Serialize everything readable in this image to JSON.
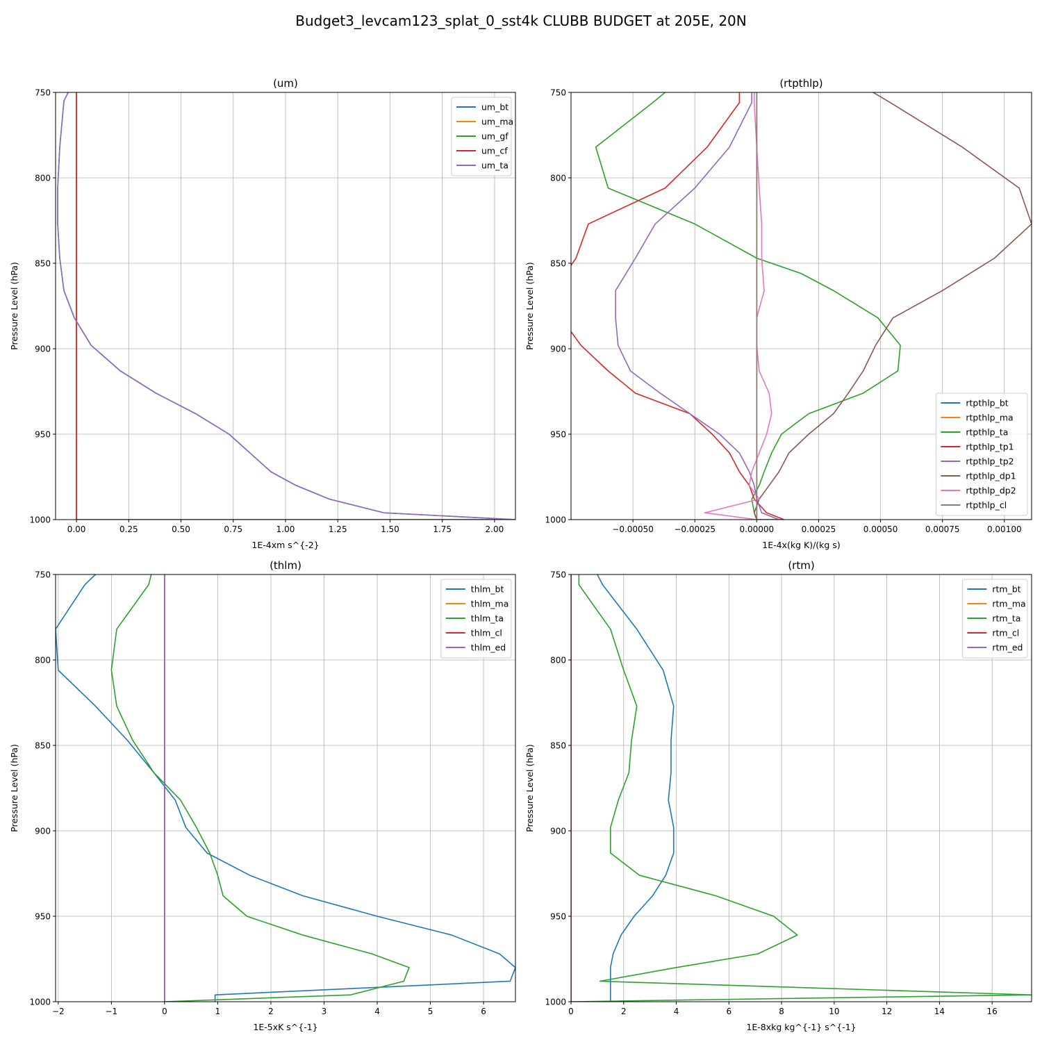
{
  "figure": {
    "title": "Budget3_levcam123_splat_0_sst4k CLUBB BUDGET at 205E, 20N"
  },
  "colors": {
    "c0": "#1f77b4",
    "c1": "#ff7f0e",
    "c2": "#2ca02c",
    "c3": "#d62728",
    "c4": "#9467bd",
    "c5": "#8c564b",
    "c6": "#e377c2",
    "c7": "#7f7f7f",
    "grid": "#b0b0b0"
  },
  "chart_data": [
    {
      "type": "line",
      "title": "(um)",
      "xlabel": "1E-4xm s^{-2}",
      "ylabel": "Pressure Level (hPa)",
      "xlim": [
        -0.1,
        2.1
      ],
      "ylim": [
        1000,
        750
      ],
      "xticks": [
        0.0,
        0.25,
        0.5,
        0.75,
        1.0,
        1.25,
        1.5,
        1.75,
        2.0
      ],
      "xtick_labels": [
        "0.00",
        "0.25",
        "0.50",
        "0.75",
        "1.00",
        "1.25",
        "1.50",
        "1.75",
        "2.00"
      ],
      "yticks": [
        750,
        800,
        850,
        900,
        950,
        1000
      ],
      "ytick_labels": [
        "750",
        "800",
        "850",
        "900",
        "950",
        "1000"
      ],
      "legend_position": "upper-right",
      "series": [
        {
          "name": "um_bt",
          "color": "c0",
          "x": [
            -0.04,
            -0.06,
            -0.08,
            -0.09,
            -0.09,
            -0.08,
            -0.06,
            -0.01,
            0.07,
            0.21,
            0.38,
            0.57,
            0.73,
            0.83,
            0.93,
            1.05,
            1.21,
            1.47,
            2.1,
            0.0
          ],
          "y": [
            750,
            755,
            782,
            806,
            827,
            847,
            866,
            882,
            898,
            913,
            926,
            938,
            950,
            961,
            972,
            980,
            988,
            996,
            1000,
            1000
          ]
        },
        {
          "name": "um_ma",
          "color": "c1",
          "x": [
            0.0,
            0.0
          ],
          "y": [
            750,
            1000
          ]
        },
        {
          "name": "um_gf",
          "color": "c2",
          "x": [
            0.0,
            0.0
          ],
          "y": [
            750,
            1000
          ]
        },
        {
          "name": "um_cf",
          "color": "c3",
          "x": [
            0.0,
            0.0
          ],
          "y": [
            750,
            1000
          ]
        },
        {
          "name": "um_ta",
          "color": "c4",
          "x": [
            -0.04,
            -0.06,
            -0.08,
            -0.09,
            -0.09,
            -0.08,
            -0.06,
            -0.01,
            0.07,
            0.21,
            0.38,
            0.57,
            0.73,
            0.83,
            0.93,
            1.05,
            1.21,
            1.47,
            2.1,
            0.0
          ],
          "y": [
            750,
            755,
            782,
            806,
            827,
            847,
            866,
            882,
            898,
            913,
            926,
            938,
            950,
            961,
            972,
            980,
            988,
            996,
            1000,
            1000
          ]
        }
      ]
    },
    {
      "type": "line",
      "title": "(rtpthlp)",
      "xlabel": "1E-4x(kg K)/(kg s)",
      "ylabel": "Pressure Level (hPa)",
      "xlim": [
        -0.00075,
        0.00111
      ],
      "ylim": [
        1000,
        750
      ],
      "xticks": [
        -0.0005,
        -0.00025,
        0.0,
        0.00025,
        0.0005,
        0.00075,
        0.001
      ],
      "xtick_labels": [
        "−0.00050",
        "−0.00025",
        "0.00000",
        "0.00025",
        "0.00050",
        "0.00075",
        "0.00100"
      ],
      "yticks": [
        750,
        800,
        850,
        900,
        950,
        1000
      ],
      "ytick_labels": [
        "750",
        "800",
        "850",
        "900",
        "950",
        "1000"
      ],
      "legend_position": "lower-right",
      "series": [
        {
          "name": "rtpthlp_bt",
          "color": "c0",
          "x": [
            0.0,
            0.0
          ],
          "y": [
            750,
            1000
          ]
        },
        {
          "name": "rtpthlp_ma",
          "color": "c1",
          "x": [
            0.0,
            0.0
          ],
          "y": [
            750,
            1000
          ]
        },
        {
          "name": "rtpthlp_ta",
          "color": "c2",
          "x": [
            -0.00037,
            -0.00042,
            -0.00065,
            -0.0006,
            -0.00025,
            0.0,
            0.00018,
            0.00031,
            0.00049,
            0.00058,
            0.00057,
            0.00043,
            0.00021,
            0.0001,
            6e-05,
            3e-05,
            1e-05,
            -2e-05,
            -1e-05,
            0.0
          ],
          "y": [
            750,
            756,
            782,
            806,
            827,
            847,
            856,
            866,
            882,
            898,
            913,
            926,
            938,
            950,
            961,
            972,
            980,
            988,
            996,
            1000
          ]
        },
        {
          "name": "rtpthlp_tp1",
          "color": "c3",
          "x": [
            -7e-05,
            -7e-05,
            -0.0002,
            -0.00037,
            -0.00068,
            -0.00073,
            -0.00082,
            -0.00079,
            -0.00071,
            -0.0006,
            -0.00049,
            -0.00027,
            -0.00018,
            -0.00011,
            -7e-05,
            -3e-05,
            -1e-05,
            4e-05,
            0.00011,
            0.0
          ],
          "y": [
            750,
            756,
            782,
            806,
            827,
            847,
            866,
            882,
            898,
            913,
            926,
            938,
            950,
            961,
            972,
            980,
            988,
            996,
            1000,
            1000
          ]
        },
        {
          "name": "rtpthlp_tp2",
          "color": "c4",
          "x": [
            -2e-05,
            -2e-05,
            -0.00011,
            -0.00025,
            -0.00041,
            -0.00049,
            -0.00057,
            -0.00057,
            -0.00056,
            -0.00051,
            -0.00039,
            -0.00027,
            -0.00015,
            -7e-05,
            -3e-05,
            -1e-05,
            0.0,
            2e-05,
            9e-05,
            0.0
          ],
          "y": [
            750,
            756,
            782,
            806,
            827,
            847,
            866,
            882,
            898,
            913,
            926,
            938,
            950,
            961,
            972,
            980,
            988,
            996,
            1000,
            1000
          ]
        },
        {
          "name": "rtpthlp_dp1",
          "color": "c5",
          "x": [
            0.00047,
            0.00054,
            0.00083,
            0.00106,
            0.00111,
            0.00096,
            0.00075,
            0.00055,
            0.00048,
            0.00043,
            0.00037,
            0.00031,
            0.00021,
            0.00013,
            9e-05,
            5e-05,
            1e-05,
            -1e-05,
            0.0,
            0.0
          ],
          "y": [
            750,
            756,
            782,
            806,
            827,
            847,
            866,
            882,
            898,
            913,
            926,
            938,
            950,
            961,
            972,
            980,
            988,
            996,
            1000,
            1000
          ]
        },
        {
          "name": "rtpthlp_dp2",
          "color": "c6",
          "x": [
            -1e-05,
            -1e-05,
            0.0,
            1e-05,
            2e-05,
            2e-05,
            3e-05,
            0.0,
            0.0,
            1e-05,
            5e-05,
            6e-05,
            4e-05,
            1e-05,
            -2e-05,
            -3e-05,
            1e-05,
            -0.00021,
            0.0
          ],
          "y": [
            750,
            756,
            782,
            806,
            827,
            847,
            866,
            882,
            898,
            913,
            926,
            938,
            950,
            961,
            972,
            980,
            988,
            996,
            1000
          ]
        },
        {
          "name": "rtpthlp_cl",
          "color": "c7",
          "x": [
            0.0,
            0.0
          ],
          "y": [
            750,
            1000
          ]
        }
      ]
    },
    {
      "type": "line",
      "title": "(thlm)",
      "xlabel": "1E-5xK s^{-1}",
      "ylabel": "Pressure Level (hPa)",
      "xlim": [
        -2.05,
        6.6
      ],
      "ylim": [
        1000,
        750
      ],
      "xticks": [
        -2,
        -1,
        0,
        1,
        2,
        3,
        4,
        5,
        6
      ],
      "xtick_labels": [
        "−2",
        "−1",
        "0",
        "1",
        "2",
        "3",
        "4",
        "5",
        "6"
      ],
      "yticks": [
        750,
        800,
        850,
        900,
        950,
        1000
      ],
      "ytick_labels": [
        "750",
        "800",
        "850",
        "900",
        "950",
        "1000"
      ],
      "legend_position": "upper-right",
      "series": [
        {
          "name": "thlm_bt",
          "color": "c0",
          "x": [
            -1.3,
            -1.5,
            -2.05,
            -2.0,
            -1.3,
            -0.7,
            -0.2,
            0.2,
            0.4,
            0.8,
            1.6,
            2.6,
            4.0,
            5.4,
            6.3,
            6.6,
            6.5,
            0.95,
            0.95
          ],
          "y": [
            750,
            756,
            782,
            806,
            827,
            847,
            866,
            882,
            898,
            913,
            926,
            938,
            950,
            961,
            972,
            980,
            988,
            996,
            1000
          ]
        },
        {
          "name": "thlm_ma",
          "color": "c1",
          "x": [
            0.0,
            0.0
          ],
          "y": [
            750,
            1000
          ]
        },
        {
          "name": "thlm_ta",
          "color": "c2",
          "x": [
            -0.25,
            -0.3,
            -0.9,
            -1.0,
            -0.9,
            -0.6,
            -0.2,
            0.3,
            0.6,
            0.85,
            1.0,
            1.1,
            1.55,
            2.6,
            3.9,
            4.6,
            4.5,
            3.5,
            0.0
          ],
          "y": [
            750,
            756,
            782,
            806,
            827,
            847,
            866,
            882,
            898,
            913,
            926,
            938,
            950,
            961,
            972,
            980,
            988,
            996,
            1000
          ]
        },
        {
          "name": "thlm_cl",
          "color": "c3",
          "x": [
            0.0,
            0.0
          ],
          "y": [
            750,
            1000
          ]
        },
        {
          "name": "thlm_ed",
          "color": "c4",
          "x": [
            0.0,
            0.0
          ],
          "y": [
            750,
            1000
          ]
        }
      ]
    },
    {
      "type": "line",
      "title": "(rtm)",
      "xlabel": "1E-8xkg kg^{-1} s^{-1}",
      "ylabel": "Pressure Level (hPa)",
      "xlim": [
        0,
        17.5
      ],
      "ylim": [
        1000,
        750
      ],
      "xticks": [
        0,
        2,
        4,
        6,
        8,
        10,
        12,
        14,
        16
      ],
      "xtick_labels": [
        "0",
        "2",
        "4",
        "6",
        "8",
        "10",
        "12",
        "14",
        "16"
      ],
      "yticks": [
        750,
        800,
        850,
        900,
        950,
        1000
      ],
      "ytick_labels": [
        "750",
        "800",
        "850",
        "900",
        "950",
        "1000"
      ],
      "legend_position": "upper-right",
      "series": [
        {
          "name": "rtm_bt",
          "color": "c0",
          "x": [
            1.0,
            1.2,
            2.5,
            3.5,
            3.9,
            3.8,
            3.8,
            3.7,
            3.9,
            3.9,
            3.6,
            3.1,
            2.4,
            1.9,
            1.6,
            1.5,
            1.5,
            1.5,
            1.5
          ],
          "y": [
            750,
            756,
            782,
            806,
            827,
            847,
            866,
            882,
            898,
            913,
            926,
            938,
            950,
            961,
            972,
            980,
            988,
            996,
            1000
          ]
        },
        {
          "name": "rtm_ma",
          "color": "c1",
          "x": [
            0.0,
            0.0
          ],
          "y": [
            750,
            1000
          ]
        },
        {
          "name": "rtm_ta",
          "color": "c2",
          "x": [
            0.3,
            0.3,
            1.5,
            2.0,
            2.5,
            2.3,
            2.2,
            1.8,
            1.5,
            1.5,
            2.6,
            5.5,
            7.7,
            8.6,
            7.1,
            4.0,
            1.1,
            17.5,
            0.0
          ],
          "y": [
            750,
            756,
            782,
            806,
            827,
            847,
            866,
            882,
            898,
            913,
            926,
            938,
            950,
            961,
            972,
            980,
            988,
            996,
            1000
          ]
        },
        {
          "name": "rtm_cl",
          "color": "c3",
          "x": [
            0.0,
            0.0
          ],
          "y": [
            750,
            1000
          ]
        },
        {
          "name": "rtm_ed",
          "color": "c4",
          "x": [
            0.0,
            0.0
          ],
          "y": [
            750,
            1000
          ]
        }
      ]
    }
  ]
}
